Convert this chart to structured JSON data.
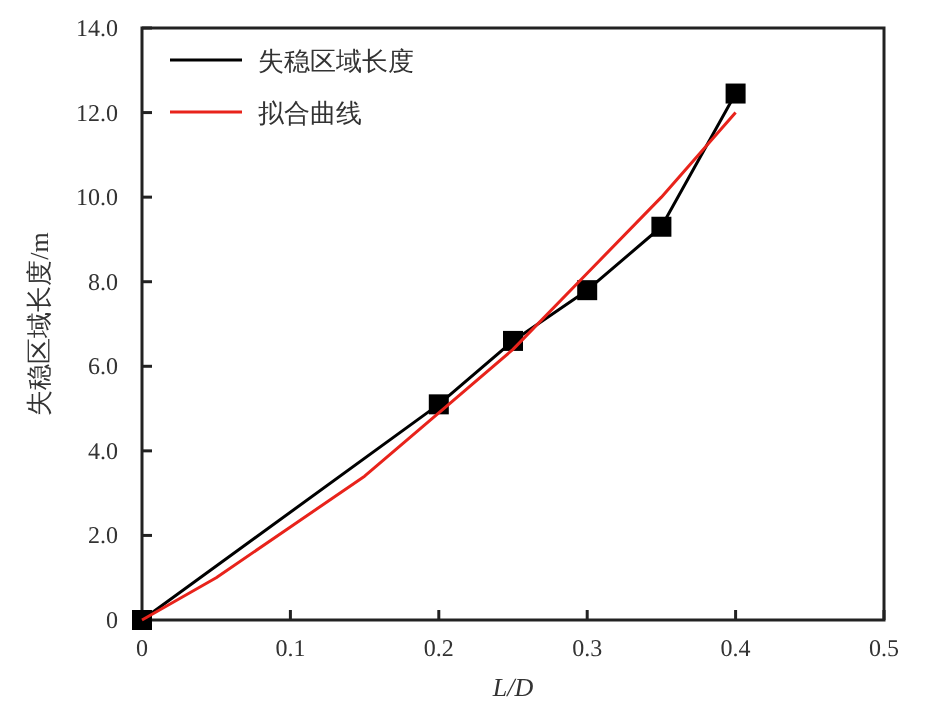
{
  "chart_data": {
    "type": "line",
    "xlabel": "L/D",
    "ylabel": "失稳区域长度/m",
    "xlim": [
      0,
      0.5
    ],
    "ylim": [
      0,
      14
    ],
    "xticks": [
      0,
      0.1,
      0.2,
      0.3,
      0.4,
      0.5
    ],
    "yticks": [
      0,
      {
        "value": 2,
        "label": "2.0"
      },
      {
        "value": 4,
        "label": "4.0"
      },
      {
        "value": 6,
        "label": "6.0"
      },
      {
        "value": 8,
        "label": "8.0"
      },
      {
        "value": 10,
        "label": "10.0"
      },
      {
        "value": 12,
        "label": "12.0"
      },
      {
        "value": 14,
        "label": "14.0"
      }
    ],
    "legend": "top left",
    "grid": false,
    "series": [
      {
        "name": "失稳区域长度",
        "color": "#000000",
        "marker": "square",
        "x": [
          0,
          0.2,
          0.25,
          0.3,
          0.35,
          0.4
        ],
        "values": [
          0,
          5.1,
          6.6,
          7.8,
          9.3,
          12.45
        ]
      },
      {
        "name": "拟合曲线",
        "color": "#e8231b",
        "marker": "none",
        "x": [
          0,
          0.05,
          0.1,
          0.15,
          0.2,
          0.25,
          0.3,
          0.35,
          0.4
        ],
        "values": [
          0,
          1.0,
          2.2,
          3.4,
          4.9,
          6.4,
          8.2,
          10.0,
          12.0
        ]
      }
    ]
  }
}
